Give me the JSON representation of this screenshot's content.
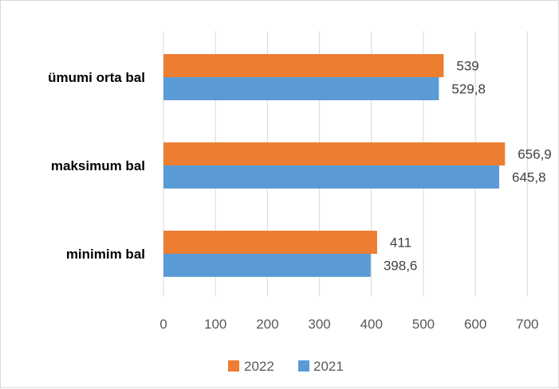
{
  "chart_data": {
    "type": "bar",
    "orientation": "horizontal",
    "categories": [
      "ümumi orta bal",
      "maksimum bal",
      "minimim bal"
    ],
    "series": [
      {
        "name": "2022",
        "color": "#ED7D31",
        "values": [
          539,
          656.9,
          411
        ],
        "labels": [
          "539",
          "656,9",
          "411"
        ]
      },
      {
        "name": "2021",
        "color": "#5B9BD5",
        "values": [
          529.8,
          645.8,
          398.6
        ],
        "labels": [
          "529,8",
          "645,8",
          "398,6"
        ]
      }
    ],
    "xlim": [
      0,
      700
    ],
    "xticks": [
      0,
      100,
      200,
      300,
      400,
      500,
      600,
      700
    ],
    "grid": true,
    "legend_position": "bottom"
  }
}
